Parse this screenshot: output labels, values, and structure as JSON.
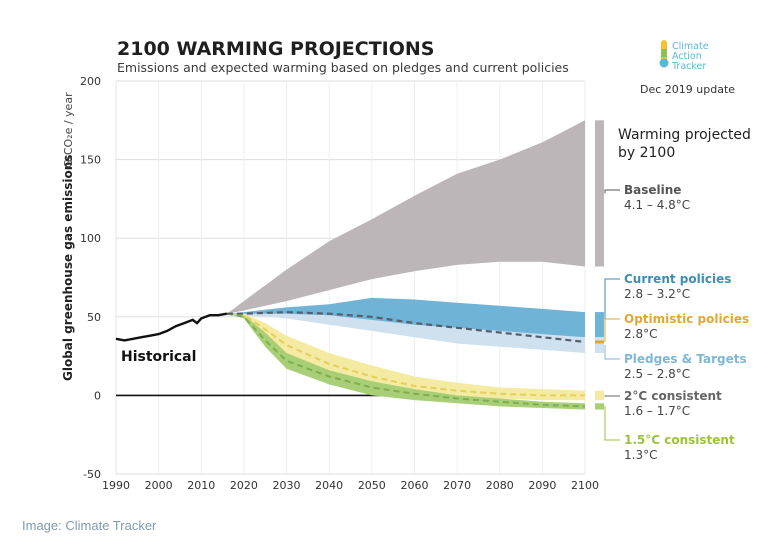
{
  "chart_data": {
    "type": "area",
    "title": "2100 WARMING PROJECTIONS",
    "subtitle": "Emissions and expected warming based on pledges and current policies",
    "ylabel": "Global greenhouse gas emissions",
    "ylabel_unit": "GtCO₂e / year",
    "xlim": [
      1990,
      2100
    ],
    "ylim": [
      -50,
      200
    ],
    "x_ticks": [
      1990,
      2000,
      2010,
      2020,
      2030,
      2040,
      2050,
      2060,
      2070,
      2080,
      2090,
      2100
    ],
    "y_ticks": [
      -50,
      0,
      50,
      100,
      150,
      200
    ],
    "grid": "horizontal",
    "historical": {
      "name": "Historical",
      "color": "#111111",
      "x": [
        1990,
        1992,
        1994,
        1996,
        1998,
        2000,
        2002,
        2004,
        2006,
        2008,
        2009,
        2010,
        2012,
        2014,
        2016
      ],
      "y": [
        36,
        35,
        36,
        37,
        38,
        39,
        41,
        44,
        46,
        48,
        46,
        49,
        51,
        51,
        52
      ]
    },
    "series": [
      {
        "name": "Baseline",
        "range": "4.1 – 4.8°C",
        "color": "#bcb6b8",
        "label_color": "#555555",
        "x": [
          2016,
          2020,
          2030,
          2040,
          2050,
          2060,
          2070,
          2080,
          2090,
          2100
        ],
        "upper": [
          52,
          60,
          80,
          98,
          112,
          127,
          141,
          150,
          161,
          175
        ],
        "lower": [
          52,
          54,
          60,
          67,
          74,
          79,
          83,
          85,
          85,
          82
        ]
      },
      {
        "name": "Current policies",
        "range": "2.8 – 3.2°C",
        "color": "#6fb3d6",
        "label_color": "#3a8fb7",
        "x": [
          2016,
          2020,
          2030,
          2040,
          2050,
          2060,
          2070,
          2080,
          2090,
          2100
        ],
        "upper": [
          52,
          53,
          56,
          58,
          62,
          61,
          59,
          57,
          55,
          53
        ],
        "lower": [
          52,
          51,
          50,
          48,
          46,
          44,
          42,
          40,
          38,
          37
        ]
      },
      {
        "name": "Pledges & Targets",
        "range": "2.5 – 2.8°C",
        "color": "#cfe0ee",
        "label_color": "#7fb7d8",
        "x": [
          2016,
          2020,
          2030,
          2040,
          2050,
          2060,
          2070,
          2080,
          2090,
          2100
        ],
        "upper": [
          52,
          52,
          52,
          51,
          48,
          45,
          43,
          41,
          39,
          37
        ],
        "lower": [
          52,
          51,
          49,
          45,
          41,
          37,
          33,
          31,
          29,
          27
        ]
      },
      {
        "name": "Optimistic policies",
        "range": "2.8°C",
        "color": "#555f6e",
        "label_color": "#e2a731",
        "style": "dashed",
        "x": [
          2016,
          2020,
          2030,
          2040,
          2050,
          2060,
          2070,
          2080,
          2090,
          2100
        ],
        "y": [
          52,
          52,
          53,
          52,
          50,
          46,
          43,
          40,
          37,
          34
        ]
      },
      {
        "name": "2°C consistent",
        "range": "1.6 – 1.7°C",
        "color": "#f4eaa1",
        "label_color": "#666666",
        "x": [
          2016,
          2020,
          2025,
          2030,
          2040,
          2050,
          2060,
          2070,
          2080,
          2090,
          2100
        ],
        "upper": [
          52,
          52,
          46,
          38,
          27,
          19,
          12,
          8,
          5,
          4,
          3
        ],
        "lower": [
          52,
          50,
          38,
          26,
          14,
          6,
          1,
          -1,
          -2,
          -3,
          -3
        ],
        "mid": [
          52,
          51,
          42,
          32,
          20,
          12,
          6,
          3,
          1,
          0,
          0
        ]
      },
      {
        "name": "1.5°C consistent",
        "range": "1.3°C",
        "color": "#a9cf76",
        "label_color": "#9bc23c",
        "x": [
          2016,
          2020,
          2025,
          2030,
          2040,
          2050,
          2060,
          2070,
          2080,
          2090,
          2100
        ],
        "upper": [
          52,
          51,
          40,
          27,
          16,
          9,
          4,
          0,
          -2,
          -4,
          -5
        ],
        "lower": [
          52,
          49,
          31,
          17,
          7,
          0,
          -3,
          -5,
          -7,
          -8,
          -9
        ],
        "mid": [
          52,
          50,
          35,
          22,
          12,
          5,
          1,
          -2,
          -4,
          -6,
          -7
        ]
      }
    ],
    "warming_title": [
      "Warming projected",
      "by 2100"
    ],
    "annotation_historical": "Historical"
  },
  "logo": {
    "lines": [
      "Climate",
      "Action",
      "Tracker"
    ]
  },
  "update_note": "Dec 2019 update",
  "credit": "Image: Climate Tracker"
}
